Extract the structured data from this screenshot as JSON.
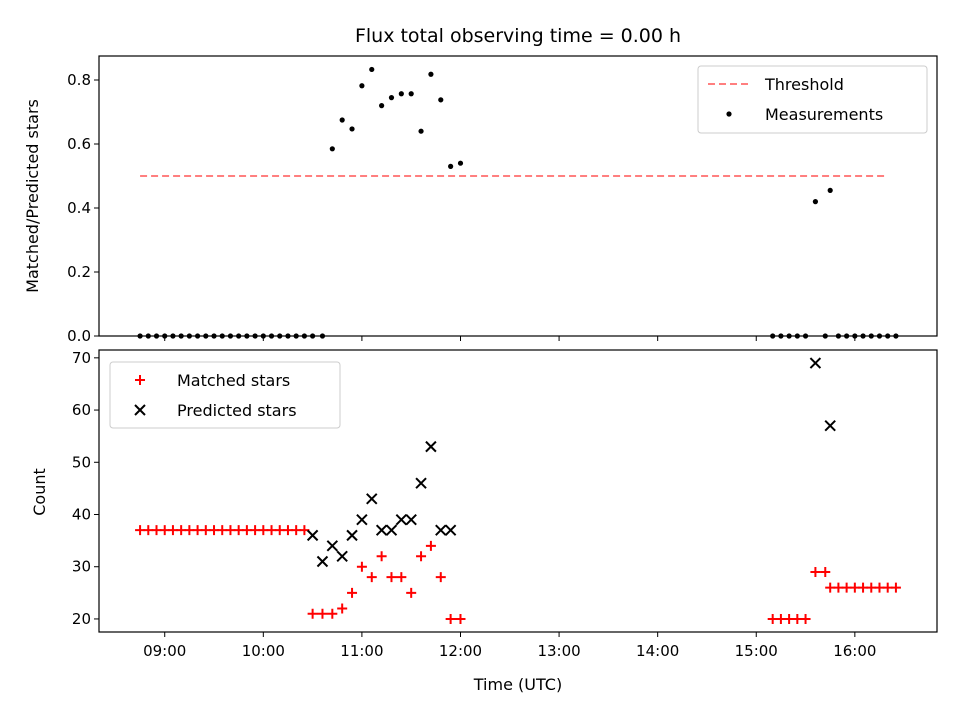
{
  "chart_data": [
    {
      "type": "scatter",
      "title": "Flux total observing time = 0.00 h",
      "ylabel": "Matched/Predicted stars",
      "ylim": [
        0,
        0.875
      ],
      "yticks": [
        0.0,
        0.2,
        0.4,
        0.6,
        0.8
      ],
      "ytick_labels": [
        "0.0",
        "0.2",
        "0.4",
        "0.6",
        "0.8"
      ],
      "legend_position": "top-right",
      "threshold": {
        "name": "Threshold",
        "value": 0.5,
        "x_range": [
          "08:45",
          "16:20"
        ],
        "color": "#ff7f7f"
      },
      "series": [
        {
          "name": "Measurements",
          "marker": "dot",
          "color": "#000000",
          "x": [
            "08:45",
            "08:50",
            "08:55",
            "09:00",
            "09:05",
            "09:10",
            "09:15",
            "09:20",
            "09:25",
            "09:30",
            "09:35",
            "09:40",
            "09:45",
            "09:50",
            "09:55",
            "10:00",
            "10:05",
            "10:10",
            "10:15",
            "10:20",
            "10:25",
            "10:30",
            "10:36",
            "10:42",
            "10:48",
            "10:54",
            "11:00",
            "11:06",
            "11:12",
            "11:18",
            "11:24",
            "11:30",
            "11:36",
            "11:42",
            "11:48",
            "11:54",
            "12:00",
            "15:10",
            "15:15",
            "15:20",
            "15:25",
            "15:30",
            "15:36",
            "15:42",
            "15:45",
            "15:50",
            "15:55",
            "16:00",
            "16:05",
            "16:10",
            "16:15",
            "16:20",
            "16:25"
          ],
          "y": [
            0,
            0,
            0,
            0,
            0,
            0,
            0,
            0,
            0,
            0,
            0,
            0,
            0,
            0,
            0,
            0,
            0,
            0,
            0,
            0,
            0,
            0,
            0,
            0.585,
            0.675,
            0.647,
            0.782,
            0.833,
            0.72,
            0.745,
            0.757,
            0.757,
            0.64,
            0.818,
            0.738,
            0.53,
            0.54,
            0,
            0,
            0,
            0,
            0,
            0.42,
            0,
            0.455,
            0,
            0,
            0,
            0,
            0,
            0,
            0,
            0
          ],
          "note_removed": true
        }
      ]
    },
    {
      "type": "scatter",
      "xlabel": "Time (UTC)",
      "ylabel": "Count",
      "ylim": [
        17.5,
        71.5
      ],
      "yticks": [
        20,
        30,
        40,
        50,
        60,
        70
      ],
      "ytick_labels": [
        "20",
        "30",
        "40",
        "50",
        "60",
        "70"
      ],
      "xlim": [
        "08:20",
        "16:50"
      ],
      "xticks": [
        "09:00",
        "10:00",
        "11:00",
        "12:00",
        "13:00",
        "14:00",
        "15:00",
        "16:00"
      ],
      "xtick_labels": [
        "09:00",
        "10:00",
        "11:00",
        "12:00",
        "13:00",
        "14:00",
        "15:00",
        "16:00"
      ],
      "legend_position": "top-left",
      "series": [
        {
          "name": "Matched stars",
          "marker": "plus",
          "color": "#ff0000",
          "x": [
            "08:45",
            "08:50",
            "08:55",
            "09:00",
            "09:05",
            "09:10",
            "09:15",
            "09:20",
            "09:25",
            "09:30",
            "09:35",
            "09:40",
            "09:45",
            "09:50",
            "09:55",
            "10:00",
            "10:05",
            "10:10",
            "10:15",
            "10:20",
            "10:25",
            "10:30",
            "10:36",
            "10:42",
            "10:48",
            "10:54",
            "11:00",
            "11:06",
            "11:12",
            "11:18",
            "11:24",
            "11:30",
            "11:36",
            "11:42",
            "11:48",
            "11:54",
            "12:00",
            "15:10",
            "15:15",
            "15:20",
            "15:25",
            "15:30",
            "15:36",
            "15:42",
            "15:45",
            "15:50",
            "15:55",
            "16:00",
            "16:05",
            "16:10",
            "16:15",
            "16:20",
            "16:25"
          ],
          "y": [
            37,
            37,
            37,
            37,
            37,
            37,
            37,
            37,
            37,
            37,
            37,
            37,
            37,
            37,
            37,
            37,
            37,
            37,
            37,
            37,
            37,
            21,
            21,
            21,
            22,
            25,
            30,
            28,
            32,
            28,
            28,
            25,
            32,
            34,
            28,
            20,
            20,
            20,
            20,
            20,
            20,
            20,
            29,
            29,
            26,
            26,
            26,
            26,
            26,
            26,
            26,
            26,
            26
          ]
        },
        {
          "name": "Predicted stars",
          "marker": "x",
          "color": "#000000",
          "x": [
            "10:30",
            "10:36",
            "10:42",
            "10:48",
            "10:54",
            "11:00",
            "11:06",
            "11:12",
            "11:18",
            "11:24",
            "11:30",
            "11:36",
            "11:42",
            "11:48",
            "11:54",
            "15:36",
            "15:45"
          ],
          "y": [
            36,
            31,
            34,
            32,
            36,
            39,
            43,
            37,
            37,
            39,
            39,
            46,
            53,
            37,
            37,
            69,
            57
          ]
        }
      ]
    }
  ]
}
